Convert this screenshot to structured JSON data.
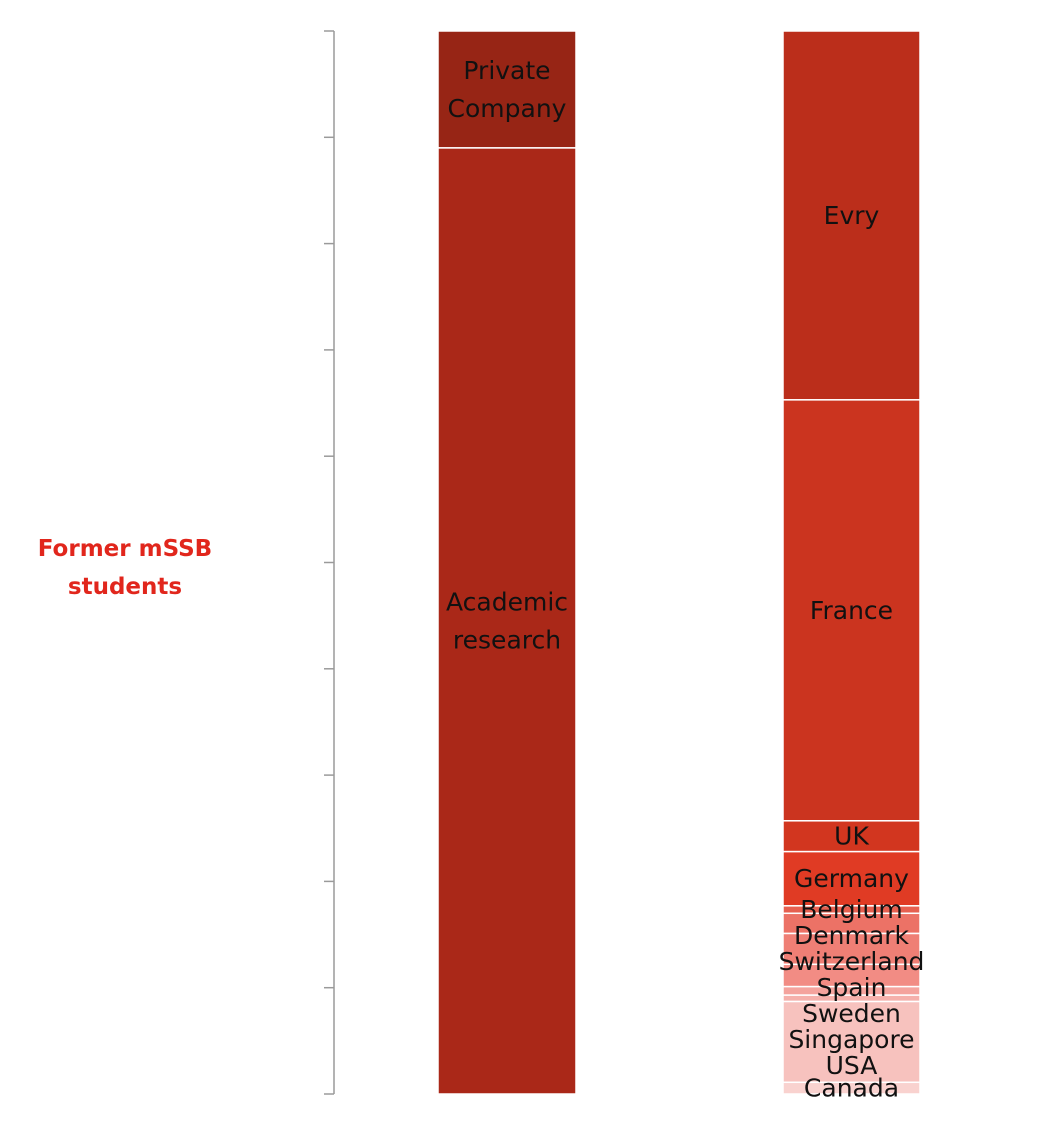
{
  "side_label": "Former mSSB students",
  "colors": {
    "side_label": "#e1261c",
    "axis": "#9a9a9a",
    "segment_border": "#ffffff"
  },
  "chart_data": {
    "type": "bar",
    "stacked": true,
    "normalized": true,
    "axis": {
      "tick_count": 10,
      "tick_labels": false
    },
    "bars": [
      {
        "name": "",
        "segments": [
          {
            "label": "Private Company",
            "value": 11,
            "color": "#972515"
          },
          {
            "label": "Academic research",
            "value": 89,
            "color": "#aa2818"
          }
        ]
      },
      {
        "name": "",
        "segments": [
          {
            "label": "Evry",
            "value": 34.7,
            "color": "#bb2e1b"
          },
          {
            "label": "France",
            "value": 39.6,
            "color": "#cb341f"
          },
          {
            "label": "UK",
            "value": 2.9,
            "color": "#d2361f"
          },
          {
            "label": "Germany",
            "value": 5.1,
            "color": "#e03b24"
          },
          {
            "label": "Belgium",
            "value": 0.7,
            "color": "#e66050"
          },
          {
            "label": "Denmark",
            "value": 1.9,
            "color": "#ec7266"
          },
          {
            "label": "Switzerland",
            "value": 2.9,
            "color": "#ef7f75"
          },
          {
            "label": "Spain",
            "value": 2.1,
            "color": "#f28c84"
          },
          {
            "label": "Sweden",
            "value": 0.8,
            "color": "#f4a39d"
          },
          {
            "label": "Singapore",
            "value": 0.6,
            "color": "#f5b0ab"
          },
          {
            "label": "USA",
            "value": 7.6,
            "color": "#f7c2be"
          },
          {
            "label": "Canada",
            "value": 1.1,
            "color": "#f9d2cf"
          }
        ]
      }
    ]
  }
}
